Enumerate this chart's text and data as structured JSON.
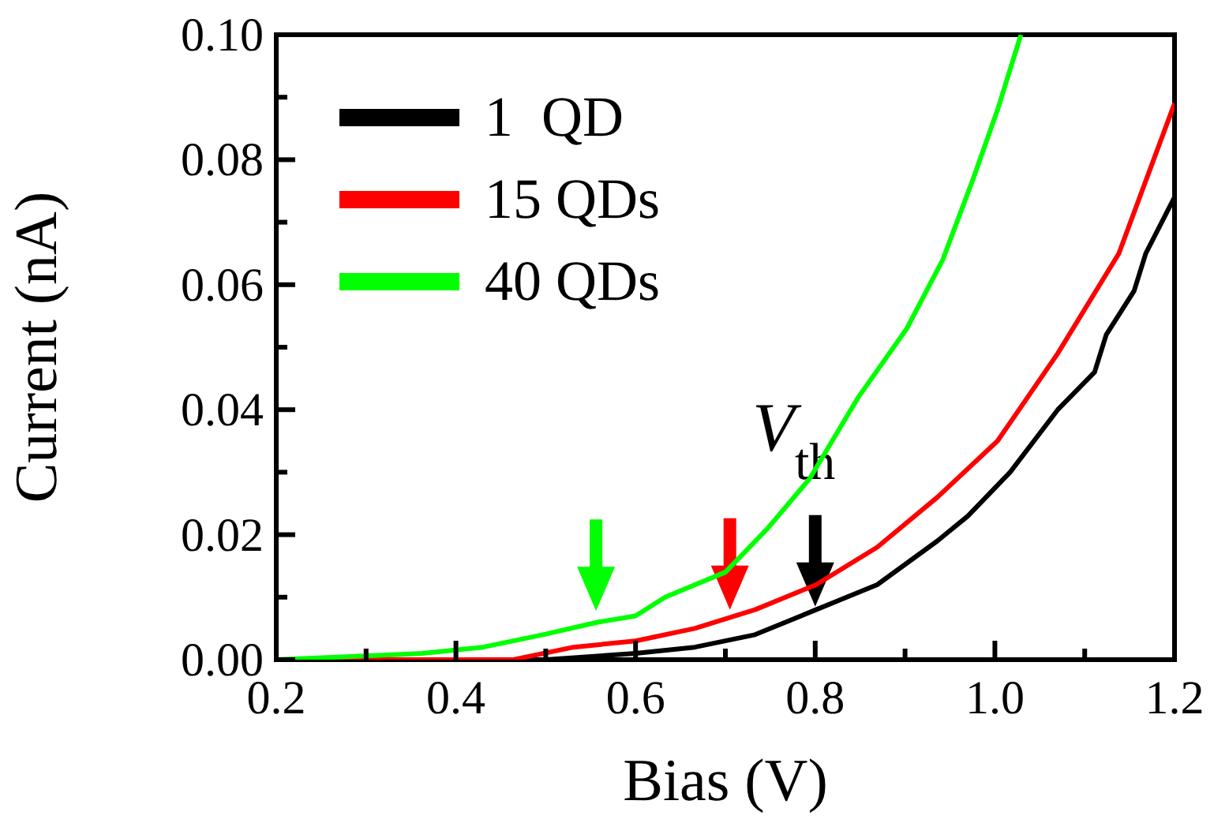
{
  "chart_data": {
    "type": "line",
    "xlabel": "Bias (V)",
    "ylabel": "Current (nA)",
    "xlim": [
      0.2,
      1.2
    ],
    "ylim": [
      0,
      0.1
    ],
    "xticks": [
      0.2,
      {
        "value": 0.3,
        "label": null
      },
      0.4,
      {
        "value": 0.5,
        "label": null
      },
      0.6,
      {
        "value": 0.7,
        "label": null
      },
      0.8,
      {
        "value": 0.9,
        "label": null
      },
      {
        "value": 1,
        "label": "1.0"
      },
      {
        "value": 1.1,
        "label": null
      },
      1.2
    ],
    "yticks": [
      {
        "value": 0,
        "label": "0.00"
      },
      {
        "value": 0.01,
        "label": null
      },
      0.02,
      {
        "value": 0.03,
        "label": null
      },
      0.04,
      {
        "value": 0.05,
        "label": null
      },
      0.06,
      {
        "value": 0.07,
        "label": null
      },
      0.08,
      {
        "value": 0.09,
        "label": null
      },
      {
        "value": 0.1,
        "label": "0.10"
      }
    ],
    "legend": "top left",
    "marker": "none",
    "line_style": "solid",
    "annotations": [
      "V$_{th}$"
    ],
    "series": [
      {
        "name": "1  QD",
        "color": "#000000",
        "x": [
          0.2,
          0.5,
          0.6,
          0.666,
          0.733,
          0.801,
          0.869,
          0.936,
          0.97,
          1.017,
          1.07,
          1.111,
          1.124,
          1.155,
          1.168,
          1.2
        ],
        "values": [
          0,
          0,
          0.001,
          0.002,
          0.004,
          0.008,
          0.012,
          0.019,
          0.023,
          0.03,
          0.04,
          0.046,
          0.052,
          0.059,
          0.065,
          0.074
        ]
      },
      {
        "name": "15 QDs",
        "color": "#ff0000",
        "x": [
          0.2,
          0.464,
          0.531,
          0.6,
          0.666,
          0.733,
          0.801,
          0.869,
          0.936,
          1.003,
          1.07,
          1.138,
          1.2
        ],
        "values": [
          0,
          0,
          0.002,
          0.003,
          0.005,
          0.008,
          0.012,
          0.018,
          0.026,
          0.035,
          0.049,
          0.065,
          0.089
        ]
      },
      {
        "name": "40 QDs",
        "color": "#00ff00",
        "x": [
          0.2,
          0.363,
          0.43,
          0.497,
          0.558,
          0.6,
          0.633,
          0.7,
          0.747,
          0.794,
          0.848,
          0.902,
          0.942,
          0.976,
          1.003,
          1.029
        ],
        "values": [
          0,
          0.001,
          0.002,
          0.004,
          0.006,
          0.007,
          0.01,
          0.014,
          0.021,
          0.029,
          0.042,
          0.053,
          0.064,
          0.077,
          0.088,
          0.1
        ]
      }
    ]
  }
}
